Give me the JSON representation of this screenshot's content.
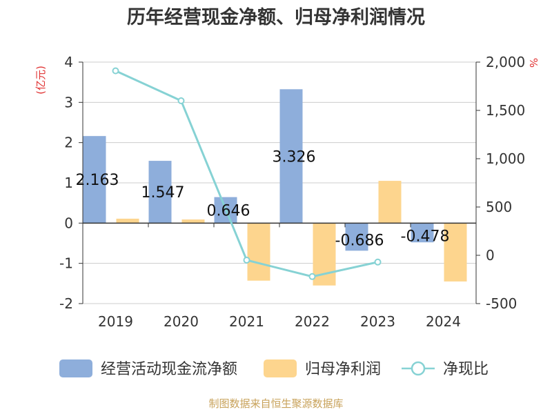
{
  "chart_data": {
    "type": "bar",
    "title": "历年经营现金净额、归母净利润情况",
    "categories": [
      "2019",
      "2020",
      "2021",
      "2022",
      "2023",
      "2024"
    ],
    "series": [
      {
        "name": "经营活动现金流净额",
        "type": "bar",
        "axis": "left",
        "color": "#8eaedb",
        "values": [
          2.163,
          1.547,
          0.646,
          3.326,
          -0.686,
          -0.478
        ],
        "labels": [
          "2.163",
          "1.547",
          "0.646",
          "3.326",
          "-0.686",
          "-0.478"
        ]
      },
      {
        "name": "归母净利润",
        "type": "bar",
        "axis": "left",
        "color": "#fdd58e",
        "values": [
          0.11,
          0.09,
          -1.43,
          -1.55,
          1.05,
          -1.45
        ]
      },
      {
        "name": "净现比",
        "type": "line",
        "axis": "right",
        "color": "#86d2d4",
        "values": [
          1910,
          1600,
          -50,
          -220,
          -70,
          null
        ]
      }
    ],
    "y_left": {
      "label": "(亿元)",
      "range": [
        -2,
        4
      ],
      "ticks": [
        "-2",
        "-1",
        "0",
        "1",
        "2",
        "3",
        "4"
      ],
      "tick_values": [
        -2,
        -1,
        0,
        1,
        2,
        3,
        4
      ]
    },
    "y_right": {
      "label": "%",
      "range": [
        -500,
        2000
      ],
      "ticks": [
        "-500",
        "0",
        "500",
        "1,000",
        "1,500",
        "2,000"
      ],
      "tick_values": [
        -500,
        0,
        500,
        1000,
        1500,
        2000
      ]
    },
    "grid": true,
    "legend_position": "bottom",
    "source": "制图数据来自恒生聚源数据库",
    "colors": {
      "title": "#333333",
      "axis_label": "#e03030",
      "source": "#c8a25a",
      "grid": "#cccccc",
      "axis": "#333333"
    }
  }
}
